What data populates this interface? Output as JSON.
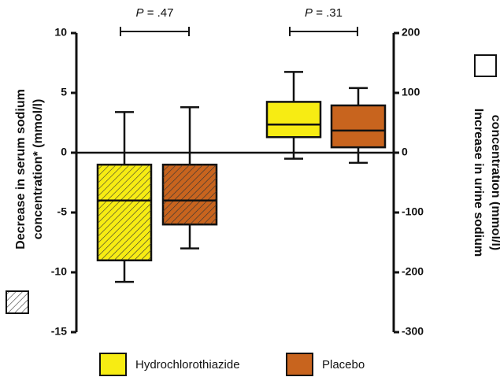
{
  "chart_data": {
    "type": "box",
    "annotations": [
      {
        "italic": "P",
        "text": " = .47"
      },
      {
        "italic": "P",
        "text": " = .31"
      }
    ],
    "ylabel": [
      "Decrease in serum sodium",
      "concentration* (mmol/l)"
    ],
    "y2label": [
      "Increase in urine sodium",
      "concentration (mmol/l)"
    ],
    "ylim": [
      -15,
      10
    ],
    "yticks": [
      -15,
      -10,
      -5,
      0,
      5,
      10
    ],
    "y2lim": [
      -300,
      200
    ],
    "y2ticks": [
      -300,
      -200,
      -100,
      0,
      100,
      200
    ],
    "series": [
      {
        "name": "Hydrochlorothiazide",
        "color": "#f7ec13",
        "boxes": [
          {
            "axis": "y",
            "hatch": true,
            "min": -10.8,
            "q1": -9,
            "median": -4,
            "q3": -1,
            "max": 3.4
          },
          {
            "axis": "y2",
            "hatch": false,
            "min": -10,
            "q1": 26,
            "median": 47,
            "q3": 85,
            "max": 135
          }
        ]
      },
      {
        "name": "Placebo",
        "color": "#c8641e",
        "boxes": [
          {
            "axis": "y",
            "hatch": true,
            "min": -8,
            "q1": -6,
            "median": -4,
            "q3": -1,
            "max": 3.8
          },
          {
            "axis": "y2",
            "hatch": false,
            "min": -17,
            "q1": 9,
            "median": 37,
            "q3": 79,
            "max": 108
          }
        ]
      }
    ]
  }
}
